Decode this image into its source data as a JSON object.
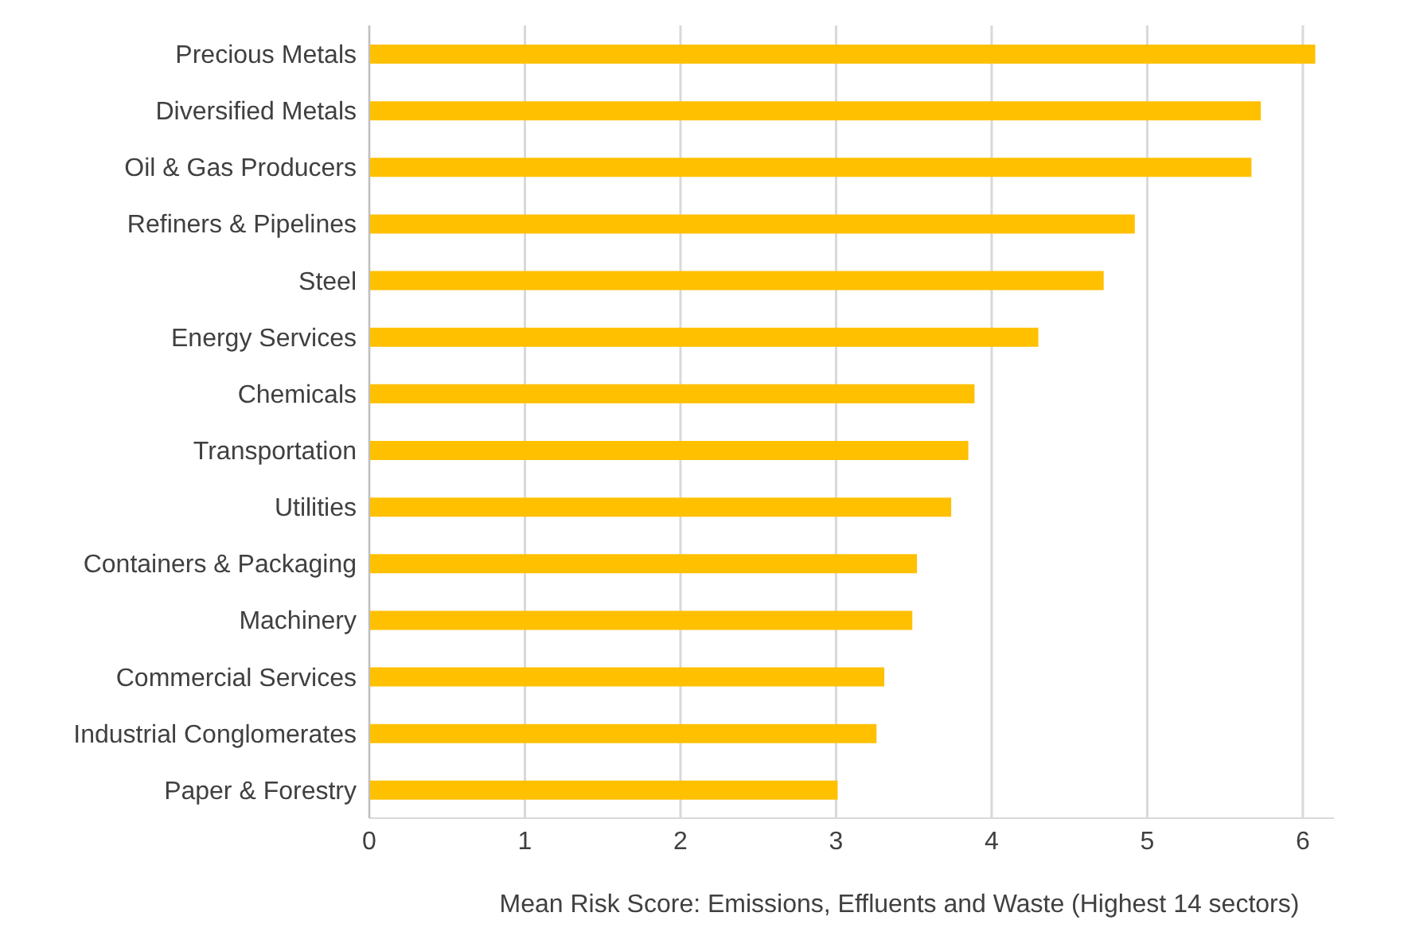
{
  "chart_data": {
    "type": "bar",
    "orientation": "horizontal",
    "xlabel": "Mean Risk Score: Emissions, Effluents and Waste (Highest 14 sectors)",
    "categories": [
      "Precious Metals",
      "Diversified Metals",
      "Oil & Gas Producers",
      "Refiners & Pipelines",
      "Steel",
      "Energy Services",
      "Chemicals",
      "Transportation",
      "Utilities",
      "Containers & Packaging",
      "Machinery",
      "Commercial Services",
      "Industrial Conglomerates",
      "Paper & Forestry"
    ],
    "values": [
      6.08,
      5.73,
      5.67,
      4.92,
      4.72,
      4.3,
      3.89,
      3.85,
      3.74,
      3.52,
      3.49,
      3.31,
      3.26,
      3.01
    ],
    "color": "#ffc000",
    "xlim": [
      0,
      6.2
    ],
    "xticks": [
      0,
      1,
      2,
      3,
      4,
      5,
      6
    ],
    "grid": "x",
    "legend": false
  }
}
